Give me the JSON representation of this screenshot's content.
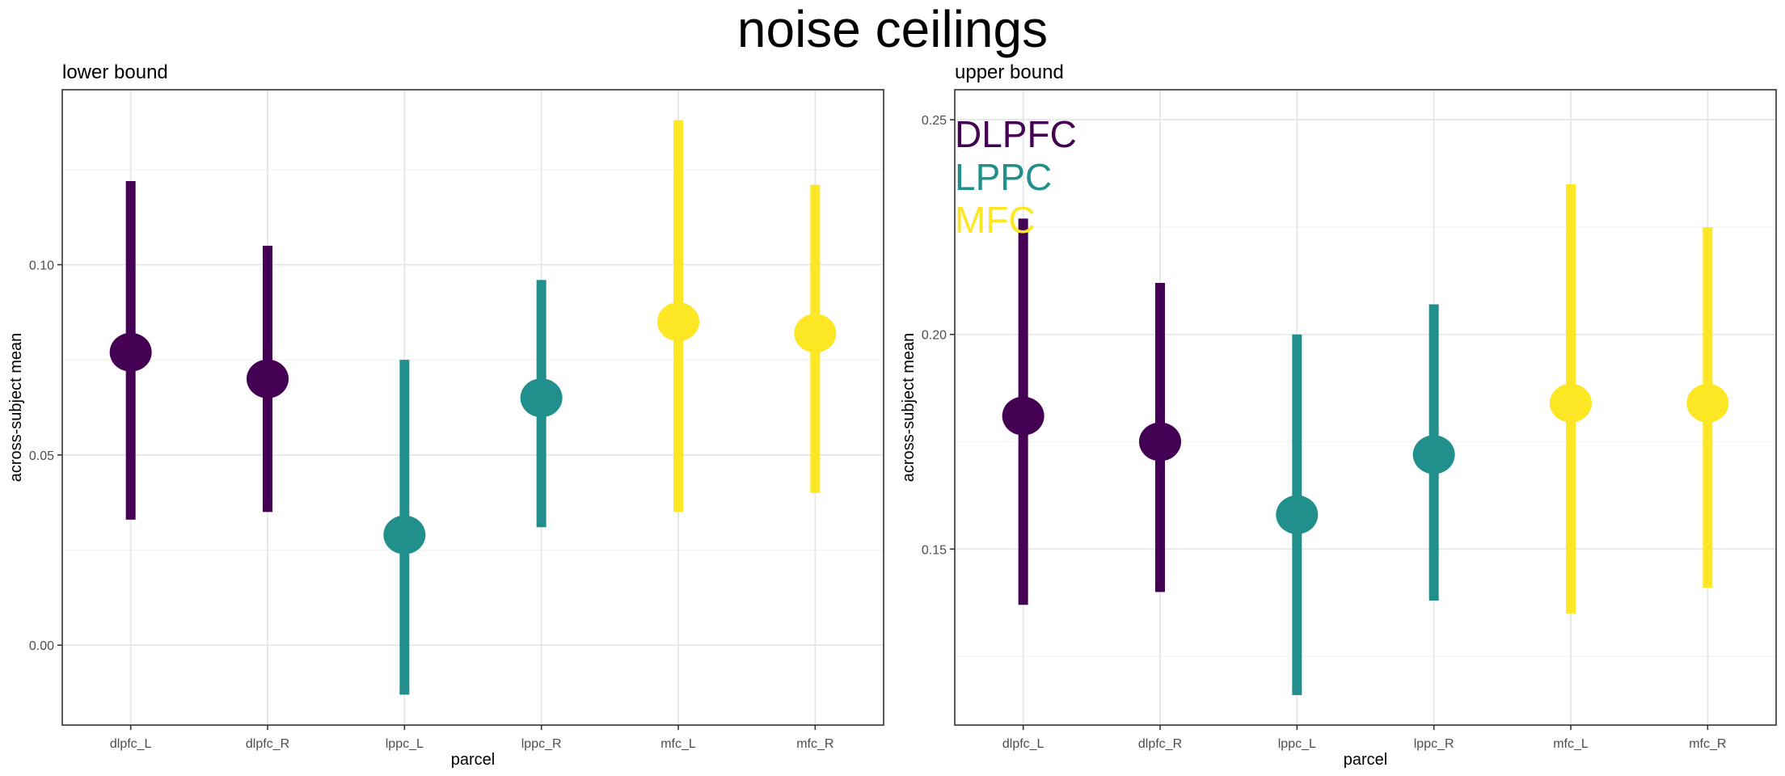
{
  "title": "noise ceilings",
  "chart_data": [
    {
      "type": "scatter",
      "subtitle": "lower bound",
      "xlabel": "parcel",
      "ylabel": "across-subject mean",
      "categories": [
        "dlpfc_L",
        "dlpfc_R",
        "lppc_L",
        "lppc_R",
        "mfc_L",
        "mfc_R"
      ],
      "values": [
        0.077,
        0.07,
        0.029,
        0.065,
        0.085,
        0.082
      ],
      "lower": [
        0.033,
        0.035,
        -0.013,
        0.031,
        0.035,
        0.04
      ],
      "upper": [
        0.122,
        0.105,
        0.075,
        0.096,
        0.138,
        0.121
      ],
      "point_colors": [
        "#440154",
        "#440154",
        "#21908C",
        "#21908C",
        "#FDE725",
        "#FDE725"
      ],
      "yticks": [
        0.0,
        0.05,
        0.1
      ],
      "ytick_labels": [
        "0.00",
        "0.05",
        "0.10"
      ],
      "ylim": [
        -0.021,
        0.146
      ],
      "grid": true
    },
    {
      "type": "scatter",
      "subtitle": "upper bound",
      "xlabel": "parcel",
      "ylabel": "across-subject mean",
      "categories": [
        "dlpfc_L",
        "dlpfc_R",
        "lppc_L",
        "lppc_R",
        "mfc_L",
        "mfc_R"
      ],
      "values": [
        0.181,
        0.175,
        0.158,
        0.172,
        0.184,
        0.184
      ],
      "lower": [
        0.137,
        0.14,
        0.116,
        0.138,
        0.135,
        0.141
      ],
      "upper": [
        0.227,
        0.212,
        0.2,
        0.207,
        0.235,
        0.225
      ],
      "point_colors": [
        "#440154",
        "#440154",
        "#21908C",
        "#21908C",
        "#FDE725",
        "#FDE725"
      ],
      "yticks": [
        0.15,
        0.2,
        0.25
      ],
      "ytick_labels": [
        "0.15",
        "0.20",
        "0.25"
      ],
      "ylim": [
        0.109,
        0.257
      ],
      "grid": true,
      "legend": [
        {
          "label": "DLPFC",
          "color": "#440154"
        },
        {
          "label": "LPPC",
          "color": "#21908C"
        },
        {
          "label": "MFC",
          "color": "#FDE725"
        }
      ],
      "legend_position": "top-left"
    }
  ]
}
